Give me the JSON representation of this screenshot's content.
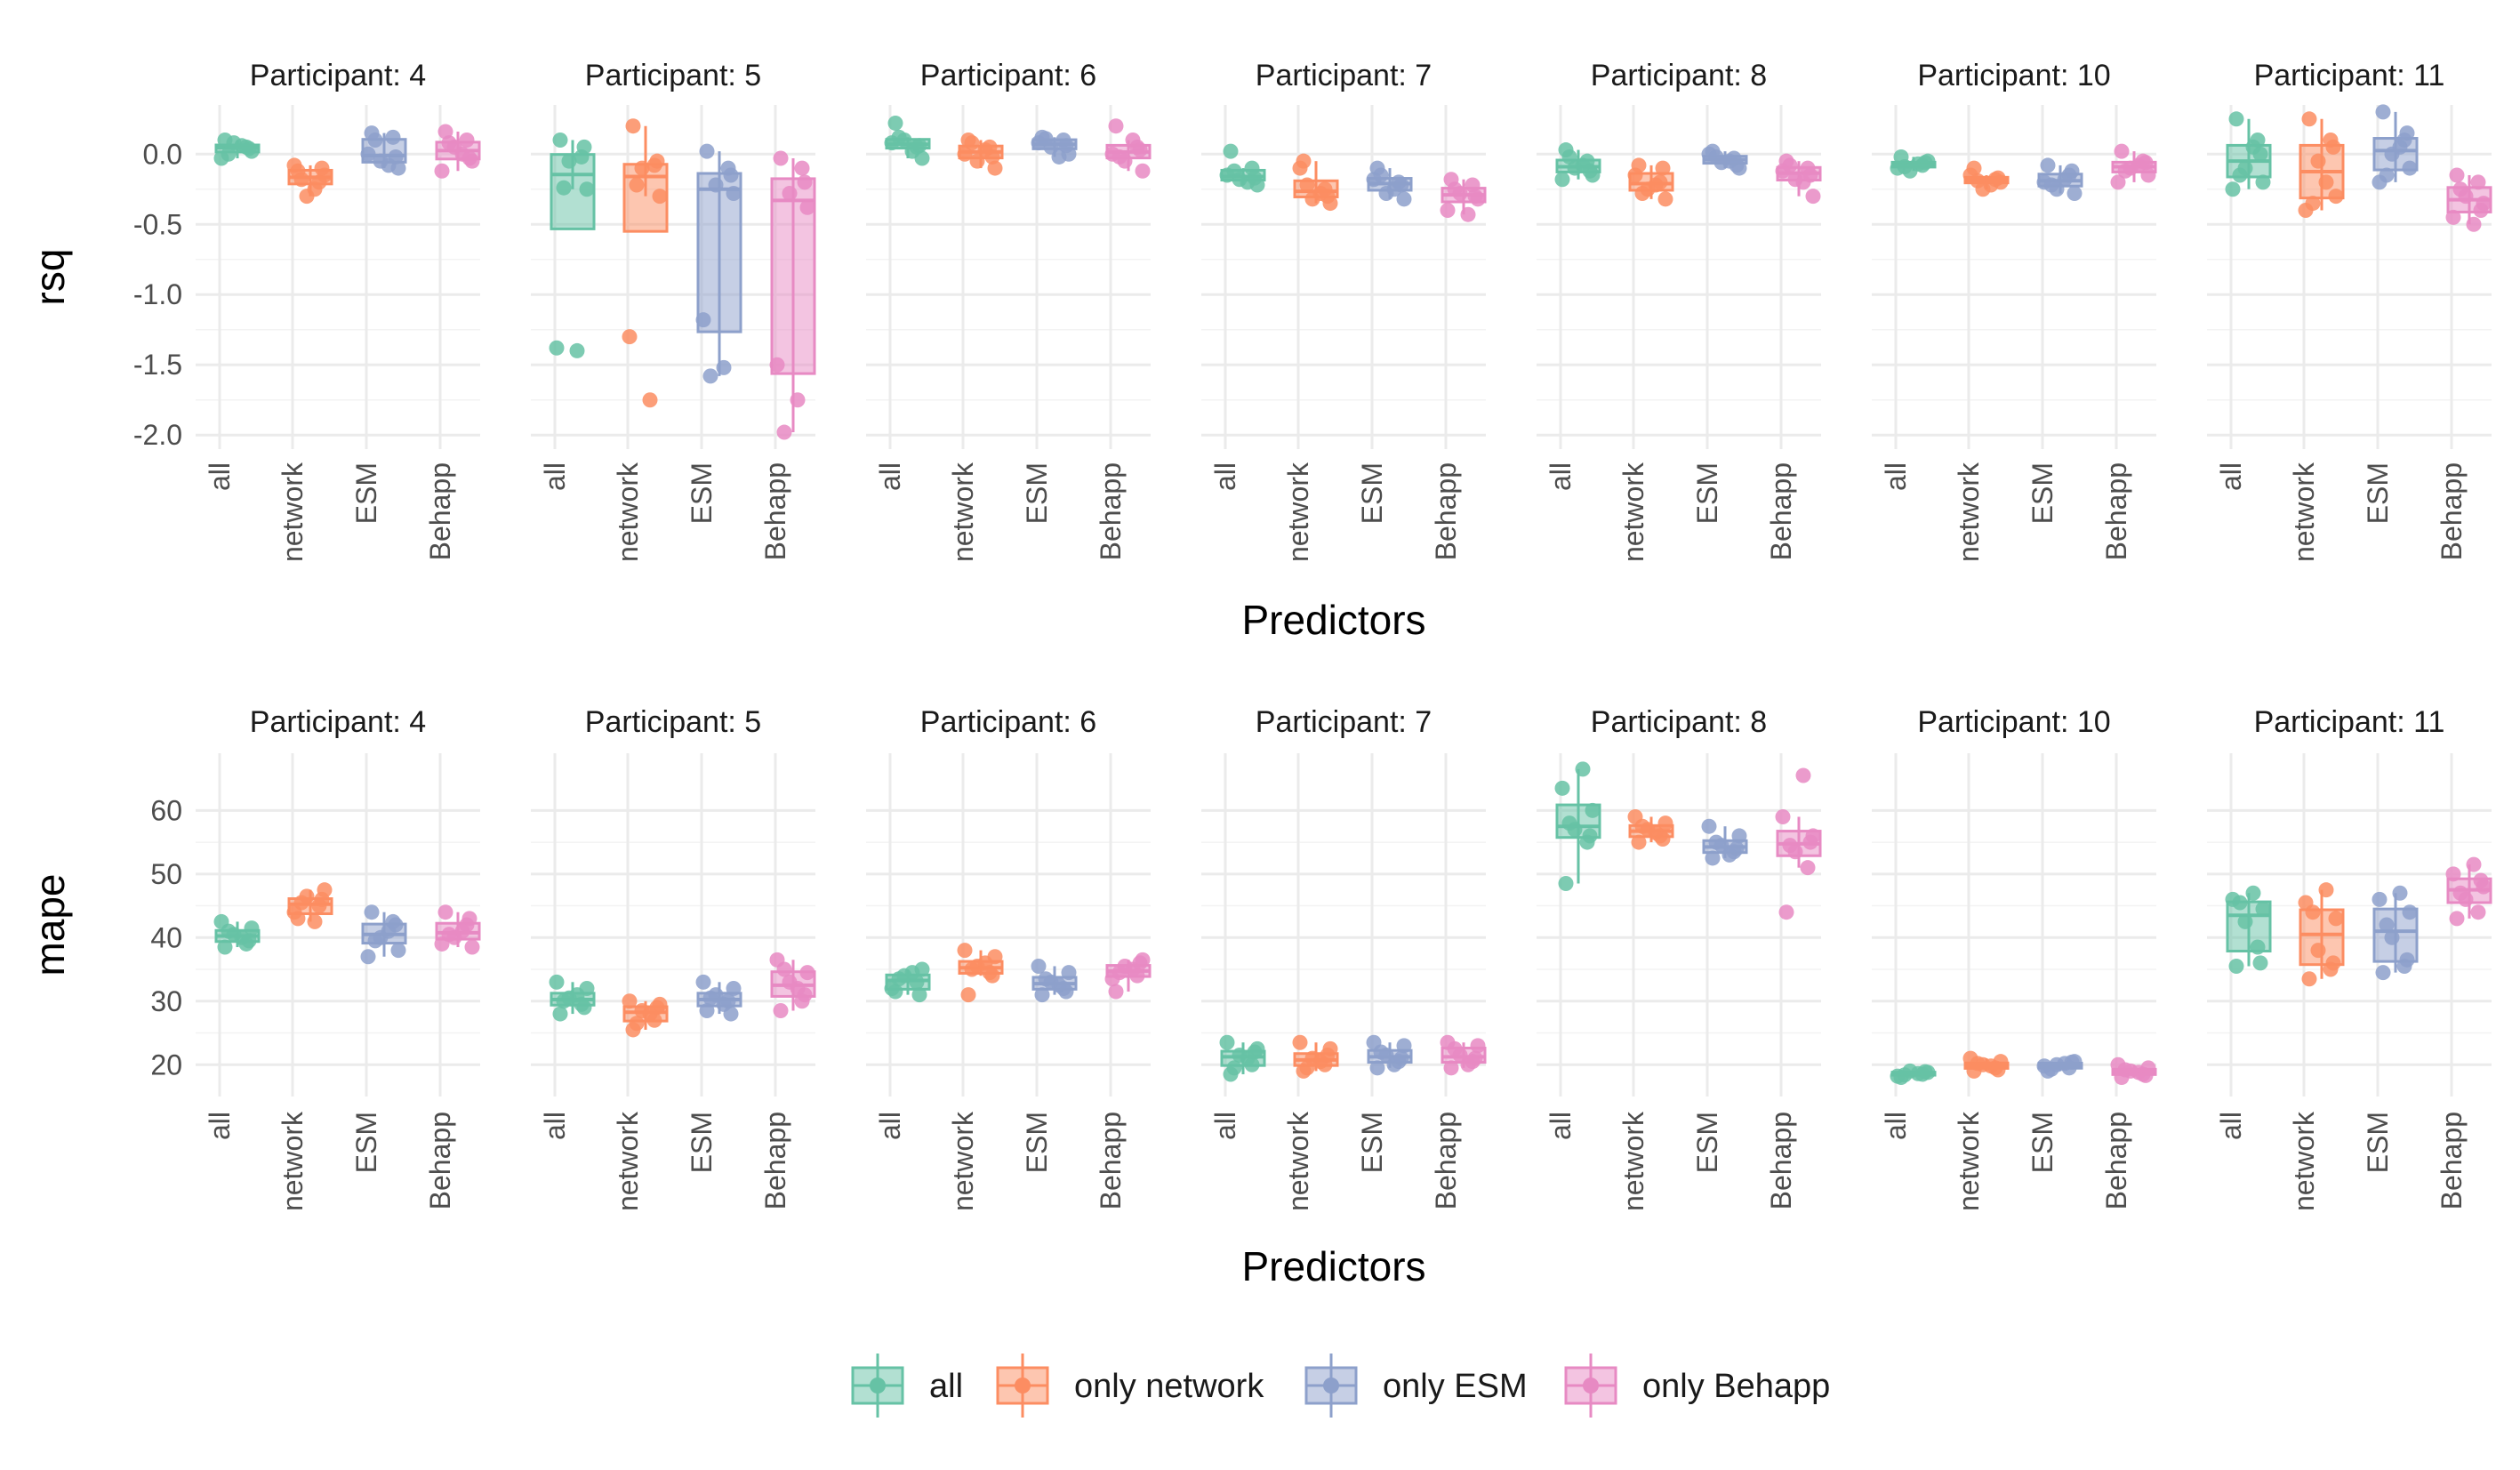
{
  "chart_data": [
    {
      "type": "boxplot",
      "facet_label_prefix": "Participant: ",
      "facets": [
        "4",
        "5",
        "6",
        "7",
        "8",
        "10",
        "11"
      ],
      "categories": [
        "all",
        "network",
        "ESM",
        "Behapp"
      ],
      "xlabel": "Predictors",
      "ylabel": "rsq",
      "ylim": [
        -2.1,
        0.35
      ],
      "yticks": [
        0.0,
        -0.5,
        -1.0,
        -1.5,
        -2.0
      ],
      "ytick_labels": [
        "0.0",
        "-0.5",
        "-1.0",
        "-1.5",
        "-2.0"
      ],
      "grid": true,
      "data": {
        "4": [
          [
            0.1,
            0.05,
            0.08,
            0.02,
            -0.03,
            0.06,
            0.0,
            0.04
          ],
          [
            -0.12,
            -0.2,
            -0.3,
            -0.15,
            -0.08,
            -0.25,
            -0.18,
            -0.1
          ],
          [
            0.15,
            0.12,
            -0.05,
            -0.1,
            0.0,
            -0.08,
            0.1,
            -0.02
          ],
          [
            0.16,
            0.1,
            0.05,
            -0.05,
            -0.12,
            0.0,
            0.08,
            -0.03
          ]
        ],
        "5": [
          [
            0.1,
            -0.02,
            -0.05,
            -0.25,
            -1.38,
            -1.4,
            -0.24,
            0.05
          ],
          [
            0.2,
            -0.08,
            -0.1,
            -0.3,
            -1.3,
            -1.75,
            -0.22,
            -0.05
          ],
          [
            0.02,
            -0.1,
            -0.22,
            -0.28,
            -1.18,
            -1.52,
            -1.58,
            -0.15
          ],
          [
            -0.03,
            -0.1,
            -0.28,
            -0.38,
            -1.5,
            -1.75,
            -1.98,
            -0.2
          ]
        ],
        "6": [
          [
            0.22,
            0.05,
            0.1,
            -0.03,
            0.08,
            0.02,
            0.12,
            0.06
          ],
          [
            0.1,
            0.05,
            -0.05,
            -0.1,
            0.0,
            0.03,
            0.08,
            -0.02
          ],
          [
            0.12,
            0.1,
            0.05,
            0.0,
            0.08,
            -0.02,
            0.11,
            0.06
          ],
          [
            0.2,
            0.05,
            -0.05,
            -0.12,
            0.0,
            0.1,
            -0.02,
            0.03
          ]
        ],
        "7": [
          [
            0.02,
            -0.1,
            -0.18,
            -0.22,
            -0.15,
            -0.2,
            -0.12,
            -0.17
          ],
          [
            -0.05,
            -0.25,
            -0.32,
            -0.35,
            -0.1,
            -0.28,
            -0.22,
            -0.3
          ],
          [
            -0.1,
            -0.2,
            -0.28,
            -0.32,
            -0.18,
            -0.25,
            -0.15,
            -0.22
          ],
          [
            -0.18,
            -0.22,
            -0.28,
            -0.32,
            -0.4,
            -0.43,
            -0.25,
            -0.3
          ]
        ],
        "8": [
          [
            0.03,
            -0.05,
            -0.1,
            -0.15,
            -0.18,
            -0.08,
            -0.02,
            -0.12
          ],
          [
            -0.08,
            -0.2,
            -0.25,
            -0.32,
            -0.15,
            -0.22,
            -0.28,
            -0.1
          ],
          [
            0.02,
            -0.03,
            -0.06,
            -0.1,
            0.0,
            -0.05,
            -0.02,
            -0.08
          ],
          [
            -0.05,
            -0.1,
            -0.18,
            -0.3,
            -0.12,
            -0.2,
            -0.08,
            -0.15
          ]
        ],
        "10": [
          [
            -0.02,
            -0.08,
            -0.12,
            -0.05,
            -0.1,
            -0.07,
            -0.09,
            -0.06
          ],
          [
            -0.1,
            -0.18,
            -0.25,
            -0.2,
            -0.15,
            -0.22,
            -0.19,
            -0.17
          ],
          [
            -0.08,
            -0.15,
            -0.25,
            -0.28,
            -0.2,
            -0.18,
            -0.22,
            -0.12
          ],
          [
            0.02,
            -0.05,
            -0.1,
            -0.15,
            -0.2,
            -0.08,
            -0.12,
            -0.06
          ]
        ],
        "11": [
          [
            0.25,
            0.1,
            -0.1,
            -0.2,
            -0.25,
            0.05,
            -0.15,
            0.0
          ],
          [
            0.25,
            0.1,
            -0.05,
            -0.3,
            -0.4,
            -0.2,
            -0.35,
            0.05
          ],
          [
            0.3,
            0.1,
            0.0,
            -0.1,
            -0.2,
            0.05,
            -0.15,
            0.15
          ],
          [
            -0.15,
            -0.2,
            -0.3,
            -0.35,
            -0.45,
            -0.5,
            -0.25,
            -0.4
          ]
        ]
      }
    },
    {
      "type": "boxplot",
      "facet_label_prefix": "Participant: ",
      "facets": [
        "4",
        "5",
        "6",
        "7",
        "8",
        "10",
        "11"
      ],
      "categories": [
        "all",
        "network",
        "ESM",
        "Behapp"
      ],
      "xlabel": "Predictors",
      "ylabel": "mape",
      "ylim": [
        15,
        69
      ],
      "yticks": [
        20,
        30,
        40,
        50,
        60
      ],
      "ytick_labels": [
        "20",
        "30",
        "40",
        "50",
        "60"
      ],
      "grid": true,
      "data": {
        "4": [
          [
            38.5,
            39.0,
            40.5,
            41.5,
            42.5,
            40.0,
            41.0,
            39.5
          ],
          [
            43.0,
            45.0,
            46.5,
            47.5,
            44.0,
            42.5,
            45.5,
            46.0
          ],
          [
            44.0,
            42.5,
            40.0,
            38.0,
            37.0,
            41.0,
            39.5,
            42.0
          ],
          [
            44.0,
            42.0,
            40.0,
            38.5,
            39.0,
            41.0,
            40.5,
            43.0
          ]
        ],
        "5": [
          [
            28.0,
            29.5,
            30.5,
            32.0,
            33.0,
            31.0,
            30.0,
            29.0
          ],
          [
            25.5,
            27.0,
            28.5,
            29.5,
            30.0,
            28.0,
            26.5,
            29.0
          ],
          [
            28.5,
            30.0,
            31.0,
            32.0,
            33.0,
            29.5,
            30.5,
            28.0
          ],
          [
            28.5,
            30.0,
            33.0,
            34.5,
            36.5,
            32.0,
            35.0,
            31.0
          ]
        ],
        "6": [
          [
            31.5,
            33.0,
            34.0,
            35.0,
            32.0,
            34.5,
            33.5,
            31.0
          ],
          [
            31.0,
            34.5,
            35.5,
            37.0,
            38.0,
            36.0,
            35.0,
            34.0
          ],
          [
            31.0,
            32.0,
            33.0,
            34.5,
            35.5,
            32.5,
            33.5,
            31.5
          ],
          [
            31.5,
            34.0,
            35.5,
            36.5,
            33.5,
            35.0,
            34.5,
            36.0
          ]
        ],
        "7": [
          [
            18.5,
            20.0,
            21.5,
            22.5,
            23.5,
            21.0,
            19.5,
            22.0
          ],
          [
            19.0,
            20.0,
            21.0,
            22.5,
            23.5,
            20.5,
            19.5,
            21.5
          ],
          [
            19.5,
            20.5,
            21.5,
            23.0,
            23.5,
            20.0,
            22.0,
            21.0
          ],
          [
            19.5,
            20.5,
            21.5,
            23.0,
            23.5,
            20.0,
            22.5,
            21.0
          ]
        ],
        "8": [
          [
            48.5,
            55.0,
            57.0,
            60.0,
            63.5,
            66.5,
            58.0,
            56.0
          ],
          [
            55.0,
            56.0,
            57.0,
            58.0,
            59.0,
            56.5,
            57.5,
            55.5
          ],
          [
            52.5,
            53.5,
            54.5,
            56.0,
            57.5,
            53.0,
            55.0,
            54.0
          ],
          [
            44.0,
            51.0,
            53.5,
            56.0,
            59.0,
            65.5,
            54.5,
            55.0
          ]
        ],
        "10": [
          [
            18.0,
            18.5,
            19.0,
            18.8,
            18.2,
            18.6,
            18.4,
            18.9
          ],
          [
            19.0,
            19.5,
            20.0,
            20.5,
            21.0,
            19.8,
            20.2,
            19.2
          ],
          [
            19.0,
            19.5,
            20.0,
            20.5,
            19.8,
            20.2,
            19.3,
            20.4
          ],
          [
            18.0,
            18.5,
            19.0,
            19.5,
            20.0,
            18.8,
            19.2,
            18.3
          ]
        ],
        "11": [
          [
            35.5,
            38.5,
            42.5,
            44.5,
            46.0,
            47.0,
            45.5,
            36.0
          ],
          [
            33.5,
            35.0,
            38.0,
            43.0,
            45.5,
            47.5,
            44.0,
            36.0
          ],
          [
            34.5,
            35.5,
            40.0,
            44.0,
            46.0,
            47.0,
            42.0,
            36.5
          ],
          [
            43.0,
            44.0,
            46.0,
            48.0,
            50.0,
            51.5,
            47.0,
            49.0
          ]
        ]
      }
    }
  ],
  "legend": {
    "items": [
      {
        "label": "all",
        "color": "#66c2a5"
      },
      {
        "label": "only network",
        "color": "#fc8d62"
      },
      {
        "label": "only ESM",
        "color": "#8da0cb"
      },
      {
        "label": "only Behapp",
        "color": "#e78ac3"
      }
    ],
    "position": "bottom"
  }
}
